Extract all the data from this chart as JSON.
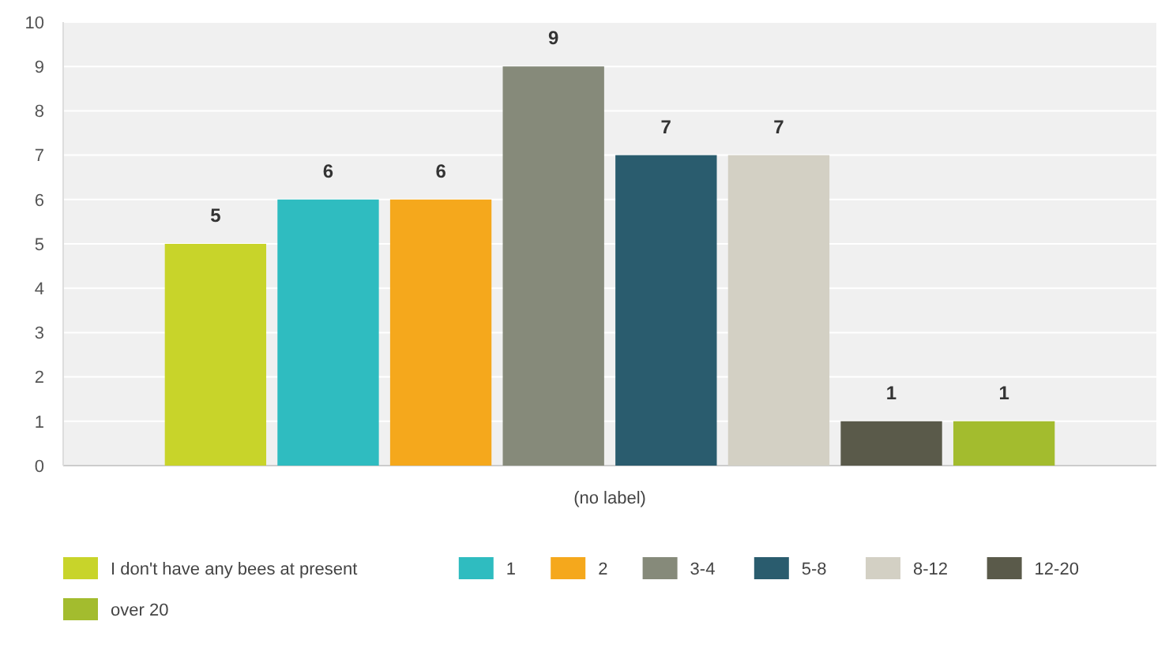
{
  "chart_data": {
    "type": "bar",
    "categories": [
      "(no label)"
    ],
    "series": [
      {
        "name": "I don't have any bees at present",
        "color": "#c8d42a",
        "values": [
          5
        ]
      },
      {
        "name": "1",
        "color": "#2fbcc0",
        "values": [
          6
        ]
      },
      {
        "name": "2",
        "color": "#f5a81c",
        "values": [
          6
        ]
      },
      {
        "name": "3-4",
        "color": "#868a7a",
        "values": [
          9
        ]
      },
      {
        "name": "5-8",
        "color": "#2a5c6e",
        "values": [
          7
        ]
      },
      {
        "name": "8-12",
        "color": "#d3d0c4",
        "values": [
          7
        ]
      },
      {
        "name": "12-20",
        "color": "#5a5a4a",
        "values": [
          1
        ]
      },
      {
        "name": "over 20",
        "color": "#a3bc2e",
        "values": [
          1
        ]
      }
    ],
    "ylim": [
      0,
      10
    ],
    "yticks": [
      0,
      1,
      2,
      3,
      4,
      5,
      6,
      7,
      8,
      9,
      10
    ],
    "grid": "y",
    "data_labels": true,
    "legend": "bottom"
  }
}
